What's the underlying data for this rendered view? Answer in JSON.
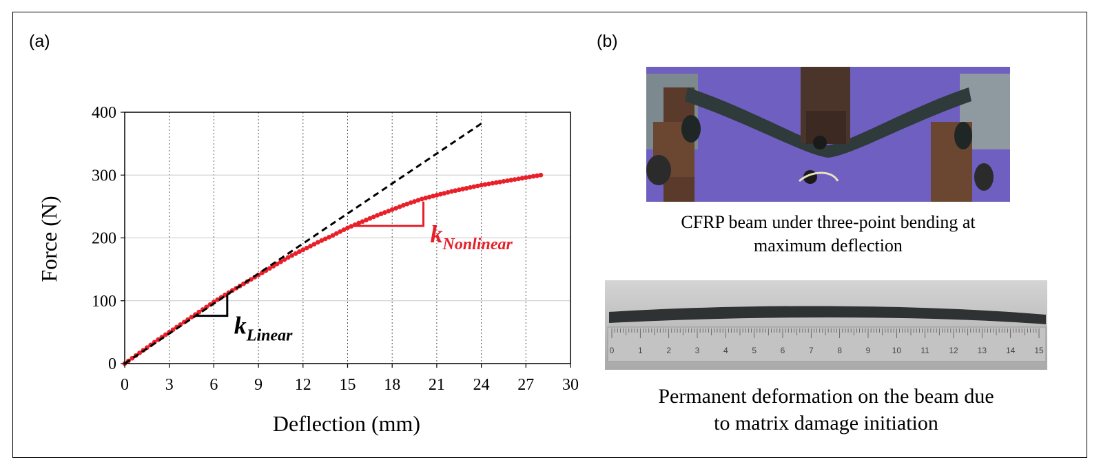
{
  "panels": {
    "a_label": "(a)",
    "b_label": "(b)"
  },
  "chart_data": {
    "type": "line",
    "xlabel": "Deflection (mm)",
    "ylabel": "Force (N)",
    "xlim": [
      0,
      30
    ],
    "ylim": [
      0,
      400
    ],
    "xticks": [
      0,
      3,
      6,
      9,
      12,
      15,
      18,
      21,
      24,
      27,
      30
    ],
    "yticks": [
      0,
      100,
      200,
      300,
      400
    ],
    "grid": {
      "x_dotted_vertical": true,
      "y_horizontal": true
    },
    "series": [
      {
        "style": "red-dotted-markers",
        "color": "#e8202a",
        "x": [
          0,
          1,
          2,
          3,
          4,
          5,
          6,
          7,
          8,
          9,
          10,
          11,
          12,
          13,
          14,
          15,
          16,
          17,
          18,
          19,
          20,
          21,
          22,
          23,
          24,
          25,
          26,
          27,
          28
        ],
        "y": [
          0,
          17,
          34,
          50,
          66,
          82,
          98,
          113,
          127,
          141,
          155,
          169,
          181,
          193,
          204,
          216,
          226,
          236,
          245,
          254,
          262,
          268,
          274,
          279,
          284,
          288,
          292,
          296,
          300
        ]
      },
      {
        "style": "black-dashed",
        "color": "#000000",
        "x": [
          0,
          24
        ],
        "y": [
          0,
          382
        ]
      }
    ],
    "annotations": [
      {
        "type": "slope-triangle",
        "color": "#000000",
        "x": [
          4.8,
          6.9
        ],
        "y": [
          76,
          110
        ],
        "label_main": "k",
        "label_sub": "Linear"
      },
      {
        "type": "slope-triangle",
        "color": "#e8202a",
        "x": [
          15.2,
          20.1
        ],
        "y": [
          219,
          258
        ],
        "label_main": "k",
        "label_sub": "Nonlinear"
      }
    ]
  },
  "photos": {
    "top_caption_line1": "CFRP beam under three-point bending at",
    "top_caption_line2": "maximum deflection",
    "bottom_caption_line1": "Permanent deformation on the beam due",
    "bottom_caption_line2": "to matrix damage initiation",
    "ruler_numbers": [
      "0",
      "1",
      "2",
      "3",
      "4",
      "5",
      "6",
      "7",
      "8",
      "9",
      "10",
      "11",
      "12",
      "13",
      "14",
      "15"
    ],
    "colors": {
      "background_purple": "#6e5fc0",
      "beam_dark": "#2f3a3a",
      "ruler_gray": "#b9b9b9"
    }
  }
}
